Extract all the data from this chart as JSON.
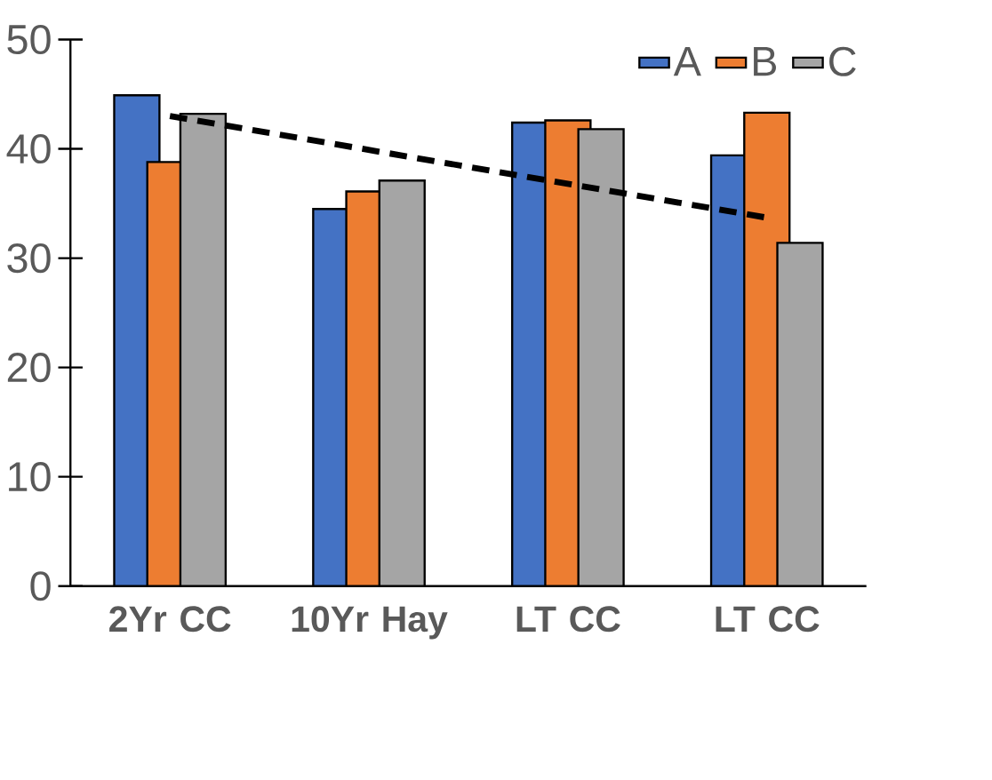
{
  "chart_data": {
    "type": "bar",
    "categories": [
      "2Yr CC",
      "10Yr Hay",
      "LT CC",
      "LT CC"
    ],
    "series": [
      {
        "name": "A",
        "color": "#4472c4",
        "values": [
          44.9,
          34.5,
          42.4,
          39.4
        ]
      },
      {
        "name": "B",
        "color": "#ed7d31",
        "values": [
          38.8,
          36.1,
          42.6,
          43.3
        ]
      },
      {
        "name": "C",
        "color": "#a5a5a5",
        "values": [
          43.2,
          37.1,
          41.8,
          31.4
        ]
      },
      {
        "type": "line",
        "color": "#000000",
        "line_style": "dashed",
        "marker": "none",
        "values": [
          43.0,
          39.9,
          36.8,
          33.7
        ]
      }
    ],
    "ylim": [
      0,
      50
    ],
    "yticks": [
      0,
      10,
      20,
      30,
      40,
      50
    ],
    "grid": false,
    "legend": "top right"
  }
}
